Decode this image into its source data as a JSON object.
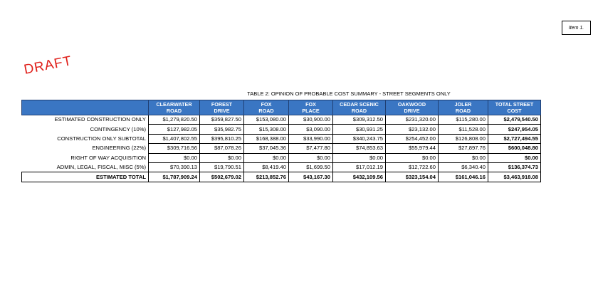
{
  "item_label": "Item 1.",
  "draft_label": "DRAFT",
  "table": {
    "title": "TABLE 2: OPINION OF PROBABLE COST SUMMARY - STREET SEGMENTS ONLY",
    "headers": [
      [
        "CLEARWATER",
        "ROAD"
      ],
      [
        "FOREST",
        "DRIVE"
      ],
      [
        "FOX",
        "ROAD"
      ],
      [
        "FOX",
        "PLACE"
      ],
      [
        "CEDAR SCENIC",
        "ROAD"
      ],
      [
        "OAKWOOD",
        "DRIVE"
      ],
      [
        "JOLER",
        "ROAD"
      ],
      [
        "TOTAL STREET",
        "COST"
      ]
    ],
    "rows": [
      {
        "label": "ESTIMATED CONSTRUCTION ONLY",
        "values": [
          "$1,279,820.50",
          "$359,827.50",
          "$153,080.00",
          "$30,900.00",
          "$309,312.50",
          "$231,320.00",
          "$115,280.00",
          "$2,479,540.50"
        ]
      },
      {
        "label": "CONTINGENCY (10%)",
        "values": [
          "$127,982.05",
          "$35,982.75",
          "$15,308.00",
          "$3,090.00",
          "$30,931.25",
          "$23,132.00",
          "$11,528.00",
          "$247,954.05"
        ]
      },
      {
        "label": "CONSTRUCTION ONLY SUBTOTAL",
        "values": [
          "$1,407,802.55",
          "$395,810.25",
          "$168,388.00",
          "$33,990.00",
          "$340,243.75",
          "$254,452.00",
          "$126,808.00",
          "$2,727,494.55"
        ]
      },
      {
        "label": "ENGINEERING (22%)",
        "values": [
          "$309,716.56",
          "$87,078.26",
          "$37,045.36",
          "$7,477.80",
          "$74,853.63",
          "$55,979.44",
          "$27,897.76",
          "$600,048.80"
        ]
      },
      {
        "label": "RIGHT OF WAY ACQUISITION",
        "values": [
          "$0.00",
          "$0.00",
          "$0.00",
          "$0.00",
          "$0.00",
          "$0.00",
          "$0.00",
          "$0.00"
        ]
      },
      {
        "label": "ADMIN, LEGAL, FISCAL, MISC (5%)",
        "values": [
          "$70,390.13",
          "$19,790.51",
          "$8,419.40",
          "$1,699.50",
          "$17,012.19",
          "$12,722.60",
          "$6,340.40",
          "$136,374.73"
        ]
      },
      {
        "label": "ESTIMATED TOTAL",
        "values": [
          "$1,787,909.24",
          "$502,679.02",
          "$213,852.76",
          "$43,167.30",
          "$432,109.56",
          "$323,154.04",
          "$161,046.16",
          "$3,463,918.08"
        ],
        "grand": true
      }
    ]
  }
}
